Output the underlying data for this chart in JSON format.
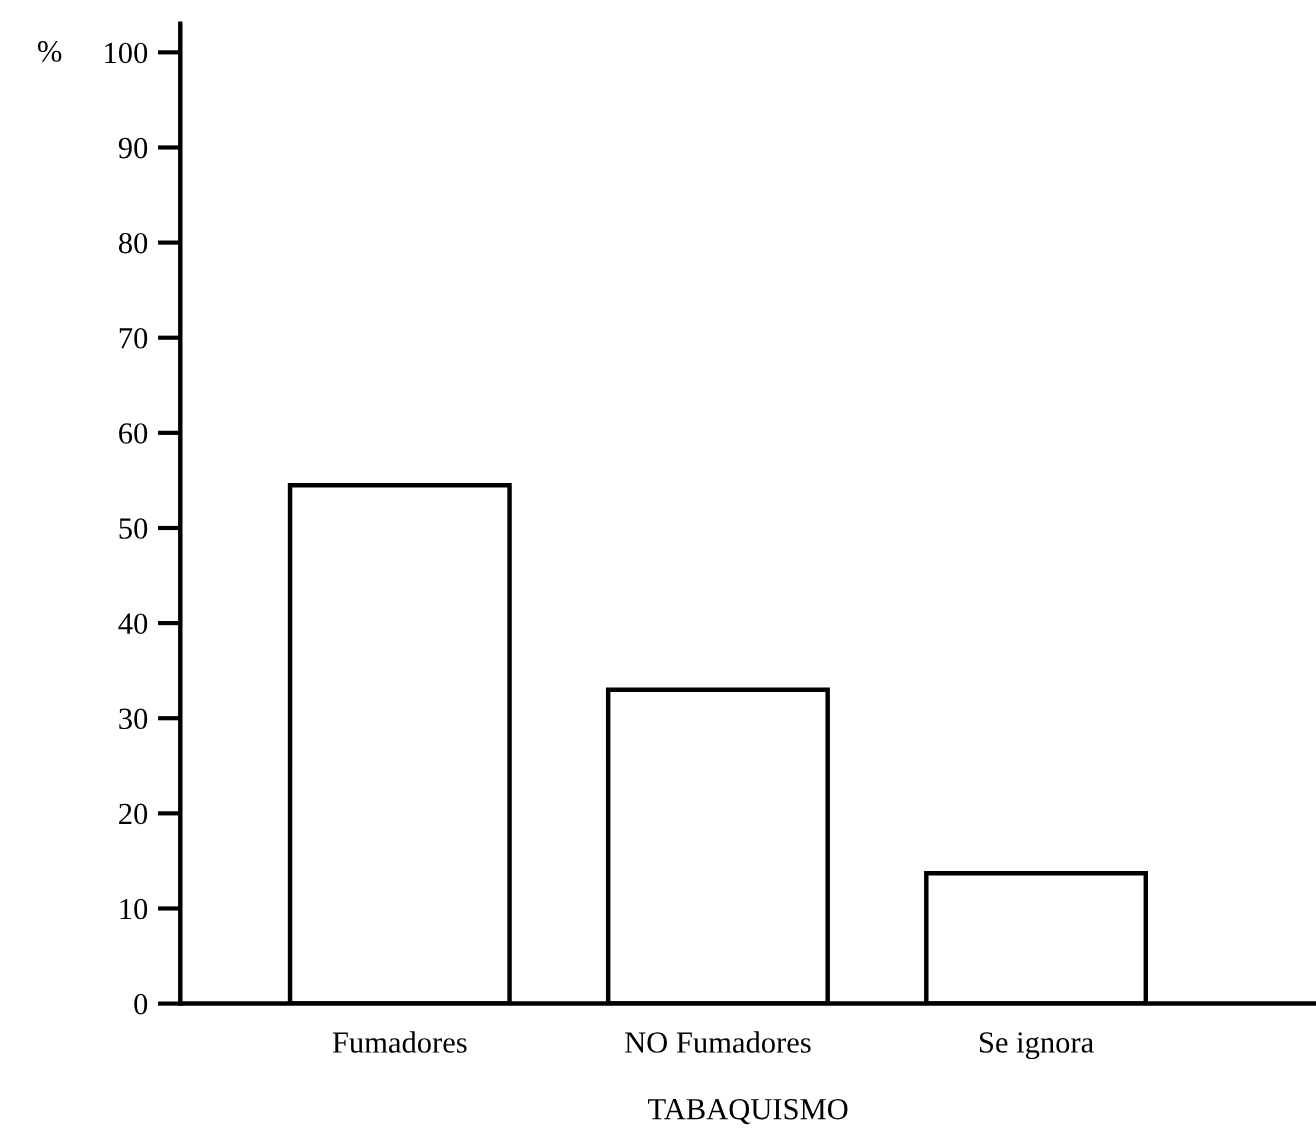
{
  "chart_data": {
    "type": "bar",
    "xlabel": "TABAQUISMO",
    "ylabel": "%",
    "categories": [
      "Fumadores",
      "NO Fumadores",
      "Se ignora"
    ],
    "values": [
      54.5,
      33,
      13.7
    ],
    "color": "#ffffff",
    "ylim": [
      0,
      103
    ],
    "yticks": [
      0,
      10,
      20,
      30,
      40,
      50,
      60,
      70,
      80,
      90,
      100
    ],
    "grid": false
  }
}
